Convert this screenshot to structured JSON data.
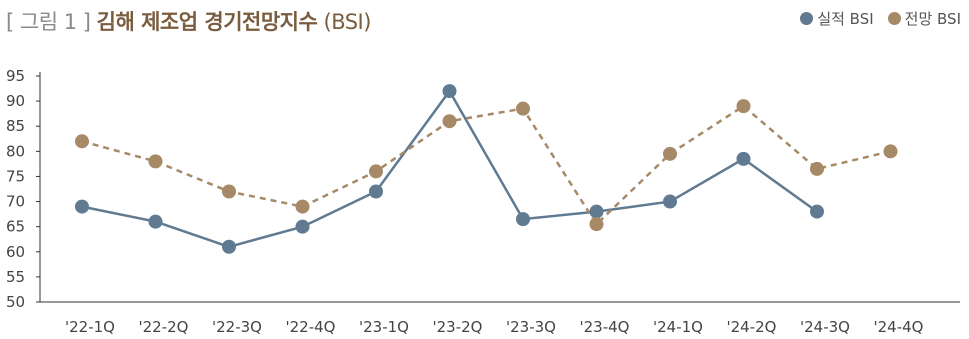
{
  "title": {
    "bracket_open": "[",
    "figure_label": "그림 1",
    "bracket_close": "]",
    "main": "김해 제조업 경기전망지수",
    "suffix": "(BSI)"
  },
  "colors": {
    "actual": "#5f7a91",
    "forecast": "#a68a68",
    "axis": "#333333",
    "title_brown": "#7a5c3e"
  },
  "chart_data": {
    "type": "line",
    "title": "[ 그림 1 ] 김해 제조업 경기전망지수 (BSI)",
    "xlabel": "",
    "ylabel": "",
    "ylim": [
      50,
      95
    ],
    "yticks": [
      50,
      55,
      60,
      65,
      70,
      75,
      80,
      85,
      90,
      95
    ],
    "grid": false,
    "legend_position": "top-right",
    "categories": [
      "'22-1Q",
      "'22-2Q",
      "'22-3Q",
      "'22-4Q",
      "'23-1Q",
      "'23-2Q",
      "'23-3Q",
      "'23-4Q",
      "'24-1Q",
      "'24-2Q",
      "'24-3Q",
      "'24-4Q"
    ],
    "series": [
      {
        "name": "실적 BSI",
        "style": "solid",
        "values": [
          69,
          66,
          61,
          65,
          72,
          92,
          66.5,
          68,
          70,
          78.5,
          68,
          null
        ]
      },
      {
        "name": "전망 BSI",
        "style": "dashed",
        "values": [
          82,
          78,
          72,
          69,
          76,
          86,
          88.5,
          65.5,
          79.5,
          89,
          76.5,
          80
        ]
      }
    ]
  }
}
